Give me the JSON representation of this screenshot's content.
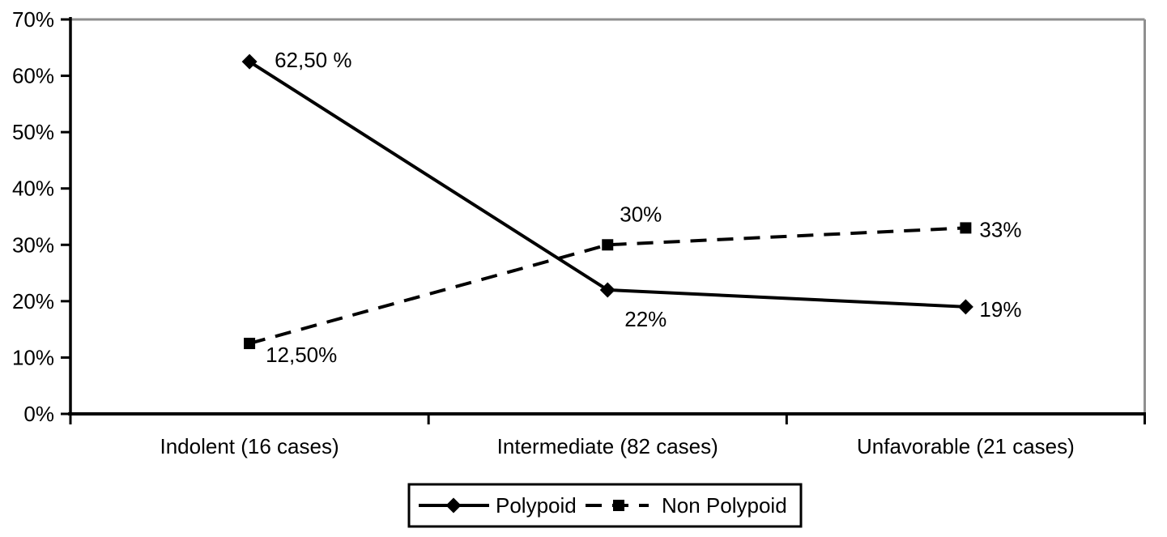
{
  "chart_data": {
    "type": "line",
    "title": "",
    "xlabel": "",
    "ylabel": "",
    "grid": "off",
    "legend_position": "bottom-center",
    "ylim": [
      0,
      70
    ],
    "ytick_step": 10,
    "ytick_labels": [
      "0%",
      "10%",
      "20%",
      "30%",
      "40%",
      "50%",
      "60%",
      "70%"
    ],
    "categories": [
      "Indolent (16 cases)",
      "Intermediate (82 cases)",
      "Unfavorable (21 cases)"
    ],
    "series": [
      {
        "name": "Polypoid",
        "marker": "diamond",
        "line_style": "solid",
        "values": [
          62.5,
          22,
          19
        ],
        "point_labels": [
          "62,50 %",
          "22%",
          "19%"
        ]
      },
      {
        "name": "Non Polypoid",
        "marker": "square",
        "line_style": "dashed",
        "values": [
          12.5,
          30,
          33
        ],
        "point_labels": [
          "12,50%",
          "30%",
          "33%"
        ]
      }
    ],
    "colors": {
      "series": "#000000",
      "text": "#000000",
      "plot_border": "#8f8f8f",
      "background": "#ffffff"
    }
  }
}
